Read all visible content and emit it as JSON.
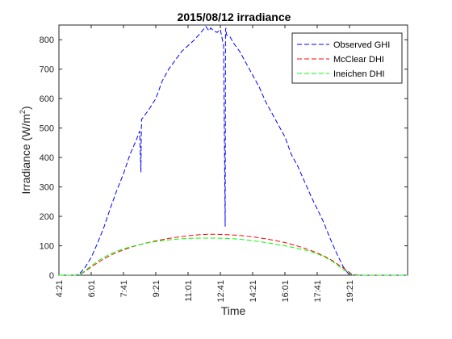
{
  "chart_data": {
    "type": "line",
    "title": "2015/08/12 irradiance",
    "xlabel": "Time",
    "ylabel": "Irradiance (W/m²)",
    "ylabel_base": "Irradiance (W/m",
    "ylabel_sup": "2",
    "ylabel_close": ")",
    "ylim": [
      0,
      850
    ],
    "yticks": [
      0,
      100,
      200,
      300,
      400,
      500,
      600,
      700,
      800
    ],
    "xlim_hours": [
      4.35,
      22.35
    ],
    "xtick_labels": [
      "4:21",
      "6:01",
      "7:41",
      "9:21",
      "11:01",
      "12:41",
      "14:21",
      "16:01",
      "17:41",
      "19:21"
    ],
    "grid": false,
    "legend_position": "top-right",
    "series": [
      {
        "name": "Observed GHI",
        "color": "#0000ff",
        "x": [
          "4:21",
          "5:21",
          "5:41",
          "6:01",
          "6:21",
          "6:41",
          "7:01",
          "7:21",
          "7:41",
          "8:01",
          "8:21",
          "8:31",
          "8:35",
          "8:36",
          "8:37",
          "8:41",
          "9:01",
          "9:21",
          "9:41",
          "10:01",
          "10:21",
          "10:41",
          "11:01",
          "11:21",
          "11:41",
          "11:56",
          "12:06",
          "12:11",
          "12:21",
          "12:31",
          "12:41",
          "12:51",
          "12:56",
          "12:57",
          "12:58",
          "12:59",
          "13:01",
          "13:11",
          "13:21",
          "13:41",
          "14:01",
          "14:21",
          "14:41",
          "15:01",
          "15:21",
          "15:41",
          "16:01",
          "16:21",
          "16:41",
          "17:01",
          "17:21",
          "17:41",
          "18:01",
          "18:21",
          "18:41",
          "19:01",
          "19:21",
          "19:41",
          "20:01",
          "20:21",
          "20:41",
          "21:21",
          "22:21"
        ],
        "values": [
          0,
          0,
          25,
          60,
          110,
          165,
          230,
          290,
          345,
          410,
          460,
          490,
          350,
          470,
          530,
          535,
          565,
          600,
          660,
          700,
          730,
          760,
          780,
          800,
          825,
          845,
          830,
          840,
          830,
          825,
          835,
          780,
          165,
          830,
          840,
          825,
          815,
          810,
          790,
          760,
          720,
          680,
          640,
          590,
          550,
          510,
          470,
          410,
          370,
          320,
          270,
          225,
          180,
          125,
          75,
          30,
          0,
          0,
          0,
          0,
          0,
          0,
          0
        ]
      },
      {
        "name": "McClear DHI",
        "color": "#ff0000",
        "x": [
          "4:21",
          "5:11",
          "5:31",
          "6:01",
          "6:31",
          "7:01",
          "7:31",
          "8:01",
          "8:31",
          "9:01",
          "9:31",
          "10:01",
          "10:31",
          "11:01",
          "11:31",
          "12:01",
          "12:31",
          "13:01",
          "13:31",
          "14:01",
          "14:31",
          "15:01",
          "15:31",
          "16:01",
          "16:31",
          "17:01",
          "17:31",
          "18:01",
          "18:31",
          "19:01",
          "19:31",
          "20:01",
          "22:21"
        ],
        "values": [
          0,
          0,
          5,
          28,
          50,
          68,
          82,
          94,
          104,
          112,
          119,
          125,
          130,
          134,
          137,
          139,
          139,
          138,
          136,
          133,
          129,
          124,
          118,
          111,
          102,
          92,
          80,
          66,
          48,
          25,
          2,
          0,
          0
        ]
      },
      {
        "name": "Ineichen DHI",
        "color": "#00ff00",
        "x": [
          "4:21",
          "5:11",
          "5:31",
          "6:01",
          "6:31",
          "7:01",
          "7:31",
          "8:01",
          "8:31",
          "9:01",
          "9:31",
          "10:01",
          "10:31",
          "11:01",
          "11:31",
          "12:01",
          "12:31",
          "13:01",
          "13:31",
          "14:01",
          "14:31",
          "15:01",
          "15:31",
          "16:01",
          "16:31",
          "17:01",
          "17:31",
          "18:01",
          "18:31",
          "19:01",
          "19:31",
          "20:01",
          "22:21"
        ],
        "values": [
          0,
          0,
          6,
          32,
          55,
          73,
          86,
          96,
          104,
          111,
          116,
          120,
          123,
          125,
          126,
          126,
          126,
          125,
          123,
          120,
          116,
          111,
          106,
          100,
          93,
          86,
          77,
          64,
          45,
          20,
          0,
          0,
          0
        ]
      }
    ]
  }
}
